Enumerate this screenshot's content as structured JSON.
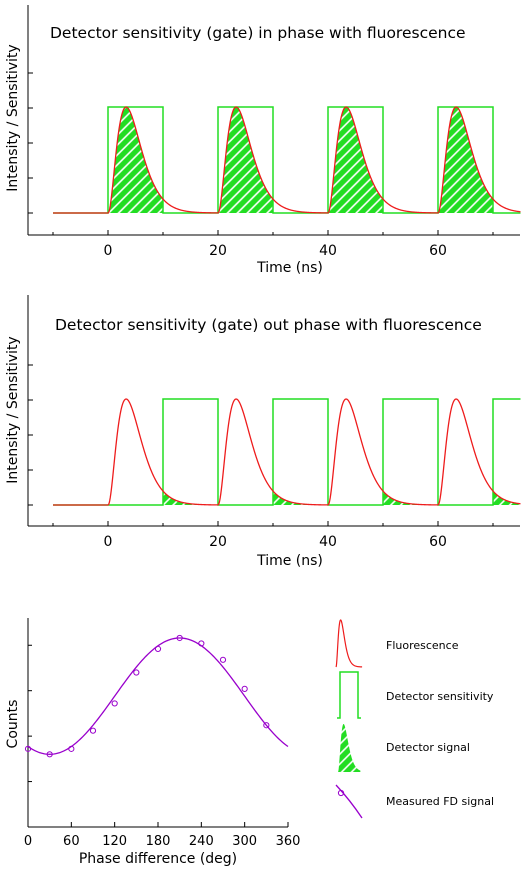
{
  "colors": {
    "fluorescence": "#ee1c1c",
    "gate": "#22dd22",
    "hatch": "#22dd22",
    "fd_signal": "#9900cc",
    "axis": "#000000"
  },
  "panels": {
    "top": {
      "title": "Detector sensitivity (gate) in phase with fluorescence",
      "xlabel": "Time (ns)",
      "ylabel": "Intensity / Sensitivity",
      "xticks": [
        "0",
        "20",
        "40",
        "60"
      ]
    },
    "middle": {
      "title": "Detector sensitivity (gate) out phase with fluorescence",
      "xlabel": "Time (ns)",
      "ylabel": "Intensity / Sensitivity",
      "xticks": [
        "0",
        "20",
        "40",
        "60"
      ]
    },
    "bottom": {
      "xlabel": "Phase difference (deg)",
      "ylabel": "Counts",
      "xticks": [
        "0",
        "60",
        "120",
        "180",
        "240",
        "300",
        "360"
      ]
    }
  },
  "legend": {
    "fluorescence": "Fluorescence",
    "gate": "Detector sensitivity",
    "signal": "Detector signal",
    "fd": "Measured FD signal"
  },
  "chart_data": [
    {
      "type": "line",
      "xlim": [
        -10,
        75
      ],
      "ylim": [
        0,
        1.15
      ],
      "pulse_period_ns": 20,
      "pulse_starts_ns": [
        0,
        20,
        40,
        60
      ],
      "pulse_peak_ns": 3.3,
      "gate": {
        "windows_ns": [
          [
            0,
            10
          ],
          [
            20,
            30
          ],
          [
            40,
            50
          ],
          [
            60,
            70
          ]
        ],
        "value": 1.0
      },
      "overlap": "hatched"
    },
    {
      "type": "line",
      "xlim": [
        -10,
        75
      ],
      "ylim": [
        0,
        1.15
      ],
      "pulse_period_ns": 20,
      "pulse_starts_ns": [
        0,
        20,
        40,
        60
      ],
      "pulse_peak_ns": 3.3,
      "gate": {
        "windows_ns": [
          [
            10,
            20
          ],
          [
            30,
            40
          ],
          [
            50,
            60
          ],
          [
            70,
            80
          ]
        ],
        "value": 1.0
      },
      "overlap": "hatched"
    },
    {
      "type": "line",
      "xlim": [
        0,
        360
      ],
      "ylim": [
        0,
        1.15
      ],
      "x": [
        0,
        30,
        60,
        90,
        120,
        150,
        180,
        210,
        240,
        270,
        300,
        330
      ],
      "y": [
        0.43,
        0.4,
        0.43,
        0.53,
        0.68,
        0.85,
        0.98,
        1.04,
        1.01,
        0.92,
        0.76,
        0.56
      ]
    }
  ]
}
